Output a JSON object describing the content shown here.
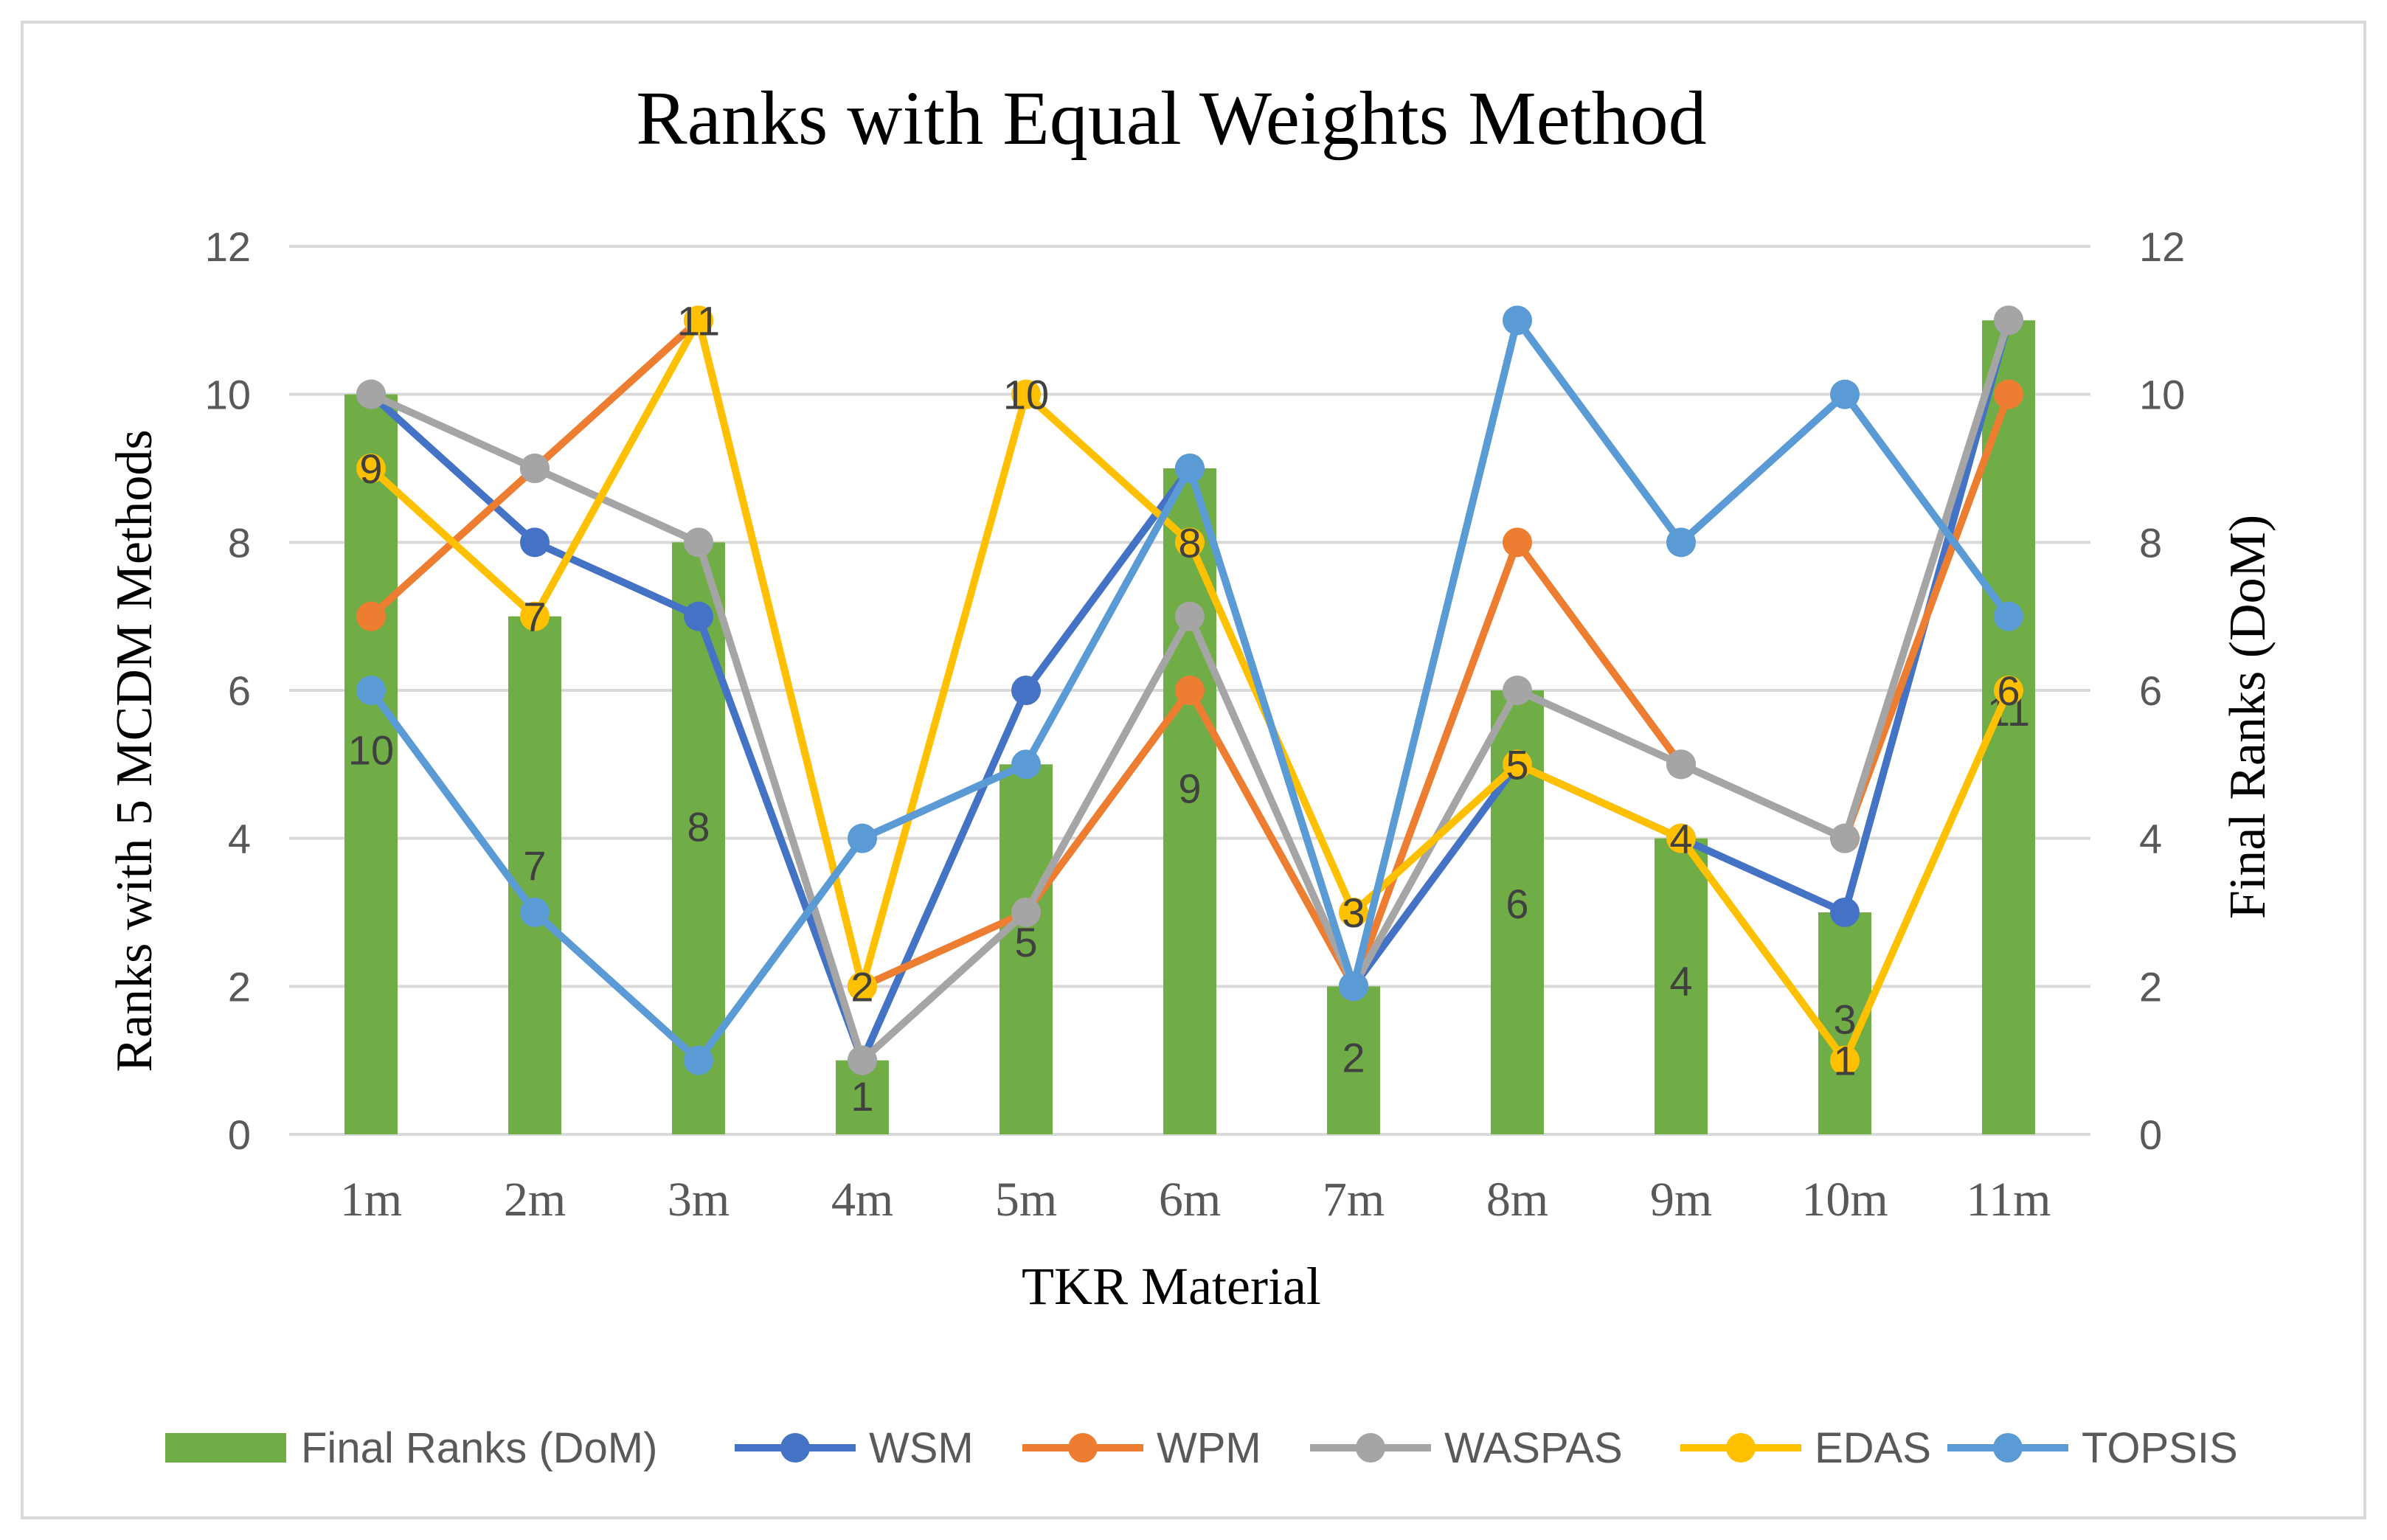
{
  "chart_data": {
    "type": "bar+line",
    "title": "Ranks with Equal Weights Method",
    "xlabel": "TKR Material",
    "ylabel_left": "Ranks with 5 MCDM Methods",
    "ylabel_right": "Final Ranks (DoM)",
    "ylim": [
      0,
      12
    ],
    "yticks": [
      "0",
      "2",
      "4",
      "6",
      "8",
      "10",
      "12"
    ],
    "categories": [
      "1m",
      "2m",
      "3m",
      "4m",
      "5m",
      "6m",
      "7m",
      "8m",
      "9m",
      "10m",
      "11m"
    ],
    "bar_series": {
      "name": "Final Ranks (DoM)",
      "color": "#70ad47",
      "values": [
        10,
        7,
        8,
        1,
        5,
        9,
        2,
        6,
        4,
        3,
        11
      ]
    },
    "bar_labels": [
      "10",
      "7",
      "8",
      "1",
      "5",
      "9",
      "2",
      "6",
      "4",
      "3",
      "11"
    ],
    "line_series": [
      {
        "name": "WSM",
        "color": "#4472c4",
        "values": [
          10,
          8,
          7,
          1,
          6,
          9,
          2,
          5,
          4,
          3,
          11
        ]
      },
      {
        "name": "WPM",
        "color": "#ed7d31",
        "values": [
          7,
          9,
          11,
          2,
          3,
          6,
          2,
          8,
          5,
          4,
          10
        ]
      },
      {
        "name": "WASPAS",
        "color": "#a5a5a5",
        "values": [
          10,
          9,
          8,
          1,
          3,
          7,
          2,
          6,
          5,
          4,
          11
        ]
      },
      {
        "name": "EDAS",
        "color": "#ffc000",
        "values": [
          9,
          7,
          11,
          2,
          10,
          8,
          3,
          5,
          4,
          1,
          6
        ]
      },
      {
        "name": "TOPSIS",
        "color": "#5b9bd5",
        "values": [
          6,
          3,
          1,
          4,
          5,
          9,
          2,
          11,
          8,
          10,
          7
        ]
      }
    ],
    "edas_labels": [
      "9",
      "7",
      "11",
      "2",
      "10",
      "8",
      "3",
      "5",
      "4",
      "1",
      "6"
    ],
    "legend_position": "bottom",
    "grid": true
  }
}
